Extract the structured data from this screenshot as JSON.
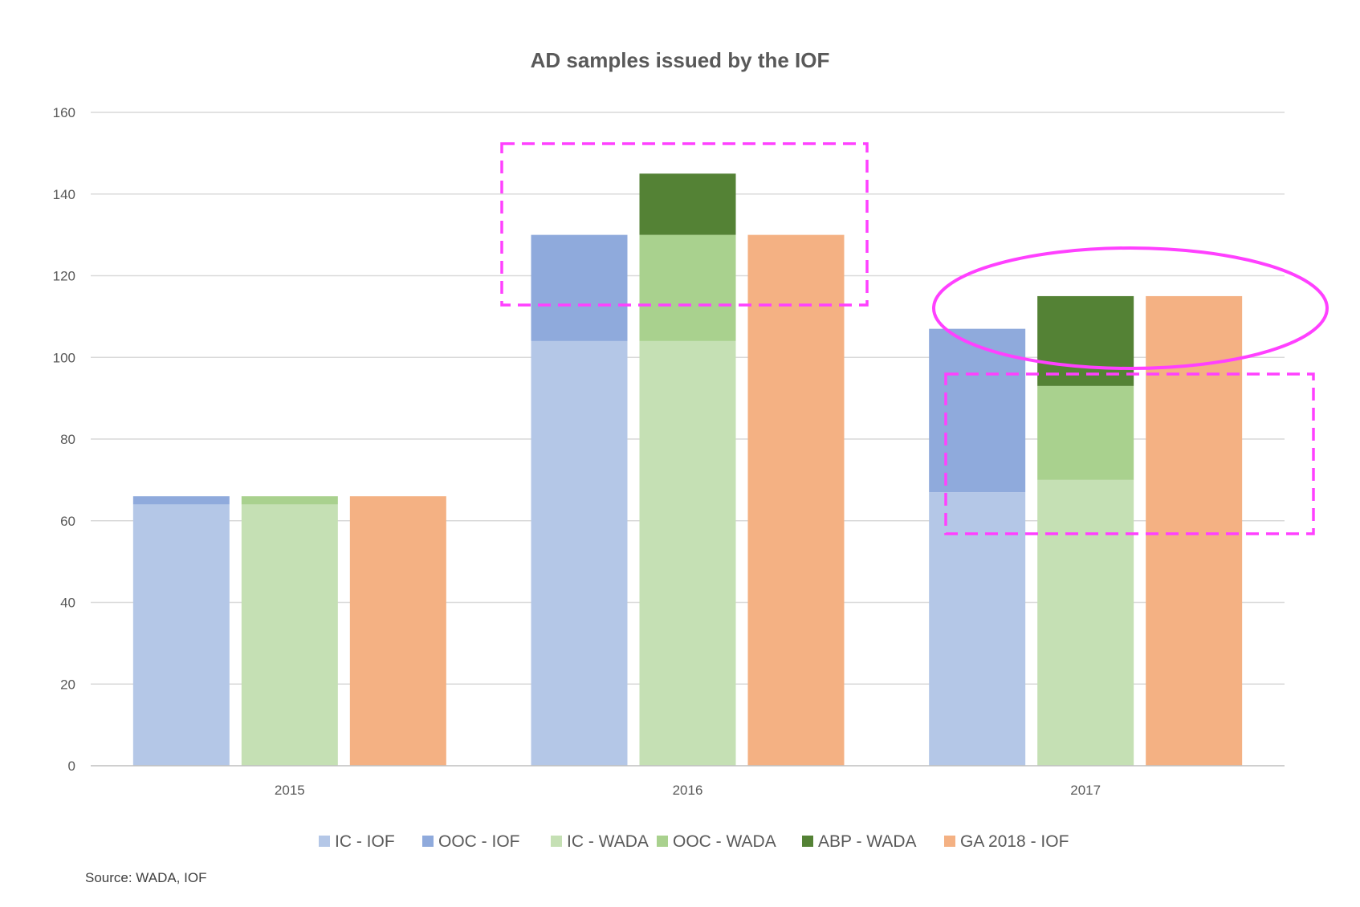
{
  "chart_data": {
    "type": "bar",
    "stacked": true,
    "title": "AD samples issued by the IOF",
    "xlabel": "",
    "ylabel": "",
    "categories": [
      "2015",
      "2016",
      "2017"
    ],
    "ylim": [
      0,
      160
    ],
    "yticks": [
      "0",
      "20",
      "40",
      "60",
      "80",
      "100",
      "120",
      "140",
      "160"
    ],
    "grid": true,
    "legend_position": "bottom",
    "groups": [
      {
        "name": "IOF",
        "series": [
          "IC  - IOF",
          "OOC - IOF"
        ]
      },
      {
        "name": "WADA",
        "series": [
          "IC - WADA",
          "OOC - WADA",
          "ABP - WADA"
        ]
      },
      {
        "name": "GA 2018",
        "series": [
          "GA 2018 - IOF"
        ]
      }
    ],
    "series": [
      {
        "name": "IC  - IOF",
        "color": "#b4c7e7",
        "stack": "IOF",
        "values": [
          64,
          104,
          67
        ]
      },
      {
        "name": "OOC - IOF",
        "color": "#8faadc",
        "stack": "IOF",
        "values": [
          2,
          26,
          40
        ]
      },
      {
        "name": "IC - WADA",
        "color": "#c5e0b4",
        "stack": "WADA",
        "values": [
          64,
          104,
          70
        ]
      },
      {
        "name": "OOC - WADA",
        "color": "#a9d18e",
        "stack": "WADA",
        "values": [
          2,
          26,
          23
        ]
      },
      {
        "name": "ABP - WADA",
        "color": "#548235",
        "stack": "WADA",
        "values": [
          0,
          15,
          22
        ]
      },
      {
        "name": "GA 2018 - IOF",
        "color": "#f4b183",
        "stack": "GA 2018",
        "values": [
          66,
          130,
          115
        ]
      }
    ],
    "annotations": [
      {
        "type": "dashed-rectangle",
        "color": "#ff40ff"
      },
      {
        "type": "ellipse",
        "color": "#ff40ff"
      },
      {
        "type": "dashed-rectangle",
        "color": "#ff40ff"
      }
    ]
  },
  "source": "Source: WADA, IOF"
}
